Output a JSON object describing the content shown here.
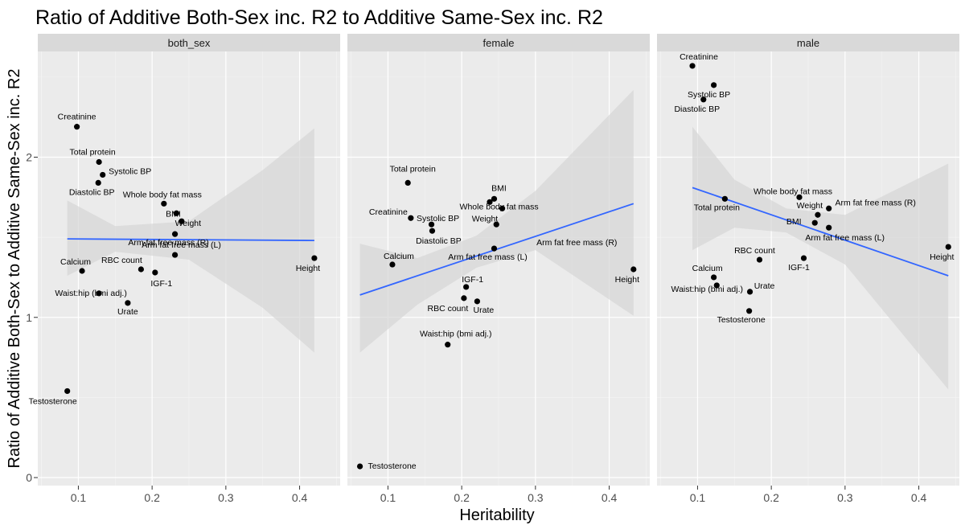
{
  "chart_data": {
    "type": "scatter",
    "title": "Ratio of Additive Both-Sex inc. R2 to Additive Same-Sex inc. R2",
    "xlabel": "Heritability",
    "ylabel": "Ratio of Additive Both-Sex to Additive Same-Sex inc. R2",
    "xlim": [
      0.045,
      0.455
    ],
    "ylim": [
      -0.05,
      2.66
    ],
    "x_ticks": [
      0.1,
      0.2,
      0.3,
      0.4
    ],
    "x_tick_labels": [
      "0.1",
      "0.2",
      "0.3",
      "0.4"
    ],
    "y_ticks": [
      0,
      1,
      2
    ],
    "y_tick_labels": [
      "0",
      "1",
      "2"
    ],
    "grid": true,
    "smooth": "linear fit with confidence band",
    "colors": {
      "panel_bg": "#ebebeb",
      "strip_bg": "#d9d9d9",
      "grid_major": "#ffffff",
      "grid_minor": "#f5f5f5",
      "point": "#000000",
      "fit_line": "#3366ff",
      "ribbon": "#d6d6d6"
    },
    "panels": [
      {
        "strip": "both_sex",
        "fit": {
          "x0": 0.085,
          "y0": 1.49,
          "x1": 0.42,
          "y1": 1.48
        },
        "ribbon": [
          [
            0.085,
            1.73,
            1.26
          ],
          [
            0.15,
            1.57,
            1.41
          ],
          [
            0.25,
            1.6,
            1.36
          ],
          [
            0.35,
            1.92,
            1.06
          ],
          [
            0.42,
            2.18,
            0.78
          ]
        ],
        "points": [
          {
            "label": "Creatinine",
            "x": 0.098,
            "y": 2.19
          },
          {
            "label": "Total protein",
            "x": 0.128,
            "y": 1.97
          },
          {
            "label": "Systolic BP",
            "x": 0.133,
            "y": 1.89
          },
          {
            "label": "Diastolic BP",
            "x": 0.127,
            "y": 1.84
          },
          {
            "label": "Whole body fat mass",
            "x": 0.216,
            "y": 1.71
          },
          {
            "label": "BMI",
            "x": 0.233,
            "y": 1.65
          },
          {
            "label": "Weight",
            "x": 0.24,
            "y": 1.6
          },
          {
            "label": "Arm fat free mass (R)",
            "x": 0.231,
            "y": 1.52
          },
          {
            "label": "Arm fat free mass (L)",
            "x": 0.231,
            "y": 1.39
          },
          {
            "label": "Height",
            "x": 0.42,
            "y": 1.37
          },
          {
            "label": "Calcium",
            "x": 0.105,
            "y": 1.29
          },
          {
            "label": "RBC count",
            "x": 0.185,
            "y": 1.3
          },
          {
            "label": "IGF-1",
            "x": 0.204,
            "y": 1.28
          },
          {
            "label": "Waist:hip (bmi adj.)",
            "x": 0.128,
            "y": 1.15
          },
          {
            "label": "Urate",
            "x": 0.167,
            "y": 1.09
          },
          {
            "label": "Testosterone",
            "x": 0.085,
            "y": 0.54
          }
        ]
      },
      {
        "strip": "female",
        "fit": {
          "x0": 0.062,
          "y0": 1.14,
          "x1": 0.433,
          "y1": 1.71
        },
        "ribbon": [
          [
            0.062,
            1.46,
            0.78
          ],
          [
            0.14,
            1.37,
            1.08
          ],
          [
            0.22,
            1.51,
            1.31
          ],
          [
            0.3,
            1.79,
            1.42
          ],
          [
            0.433,
            2.42,
            1.01
          ]
        ],
        "points": [
          {
            "label": "Total protein",
            "x": 0.127,
            "y": 1.84
          },
          {
            "label": "BMI",
            "x": 0.244,
            "y": 1.74
          },
          {
            "label": "Whole body fat mass",
            "x": 0.255,
            "y": 1.68
          },
          {
            "label": "Creatinine",
            "x": 0.131,
            "y": 1.62
          },
          {
            "label": "Systolic BP",
            "x": 0.159,
            "y": 1.58
          },
          {
            "label": "Diastolic BP",
            "x": 0.16,
            "y": 1.54
          },
          {
            "label": "Weight",
            "x": 0.238,
            "y": 1.72
          },
          {
            "label": "Arm fat free mass (R)",
            "x": 0.247,
            "y": 1.58
          },
          {
            "label": "Arm fat free mass (L)",
            "x": 0.244,
            "y": 1.43
          },
          {
            "label": "Calcium",
            "x": 0.106,
            "y": 1.33
          },
          {
            "label": "Height",
            "x": 0.433,
            "y": 1.3
          },
          {
            "label": "IGF-1",
            "x": 0.206,
            "y": 1.19
          },
          {
            "label": "RBC count",
            "x": 0.203,
            "y": 1.12
          },
          {
            "label": "Urate",
            "x": 0.221,
            "y": 1.1
          },
          {
            "label": "Waist:hip (bmi adj.)",
            "x": 0.181,
            "y": 0.83
          },
          {
            "label": "Testosterone",
            "x": 0.062,
            "y": 0.07
          }
        ]
      },
      {
        "strip": "male",
        "fit": {
          "x0": 0.093,
          "y0": 1.81,
          "x1": 0.44,
          "y1": 1.26
        },
        "ribbon": [
          [
            0.093,
            2.19,
            1.42
          ],
          [
            0.15,
            1.86,
            1.56
          ],
          [
            0.22,
            1.68,
            1.53
          ],
          [
            0.3,
            1.64,
            1.33
          ],
          [
            0.44,
            1.96,
            0.55
          ]
        ],
        "points": [
          {
            "label": "Creatinine",
            "x": 0.093,
            "y": 2.57
          },
          {
            "label": "Systolic BP",
            "x": 0.122,
            "y": 2.45
          },
          {
            "label": "Diastolic BP",
            "x": 0.108,
            "y": 2.36
          },
          {
            "label": "Whole body fat mass",
            "x": 0.238,
            "y": 1.75
          },
          {
            "label": "Total protein",
            "x": 0.137,
            "y": 1.74
          },
          {
            "label": "Arm fat free mass (R)",
            "x": 0.278,
            "y": 1.68
          },
          {
            "label": "Weight",
            "x": 0.263,
            "y": 1.64
          },
          {
            "label": "BMI",
            "x": 0.259,
            "y": 1.59
          },
          {
            "label": "Arm fat free mass (L)",
            "x": 0.278,
            "y": 1.56
          },
          {
            "label": "Height",
            "x": 0.44,
            "y": 1.44
          },
          {
            "label": "IGF-1",
            "x": 0.244,
            "y": 1.37
          },
          {
            "label": "RBC count",
            "x": 0.184,
            "y": 1.36
          },
          {
            "label": "Calcium",
            "x": 0.122,
            "y": 1.25
          },
          {
            "label": "Waist:hip (bmi adj.)",
            "x": 0.126,
            "y": 1.2
          },
          {
            "label": "Urate",
            "x": 0.171,
            "y": 1.16
          },
          {
            "label": "Testosterone",
            "x": 0.17,
            "y": 1.04
          }
        ]
      }
    ]
  }
}
